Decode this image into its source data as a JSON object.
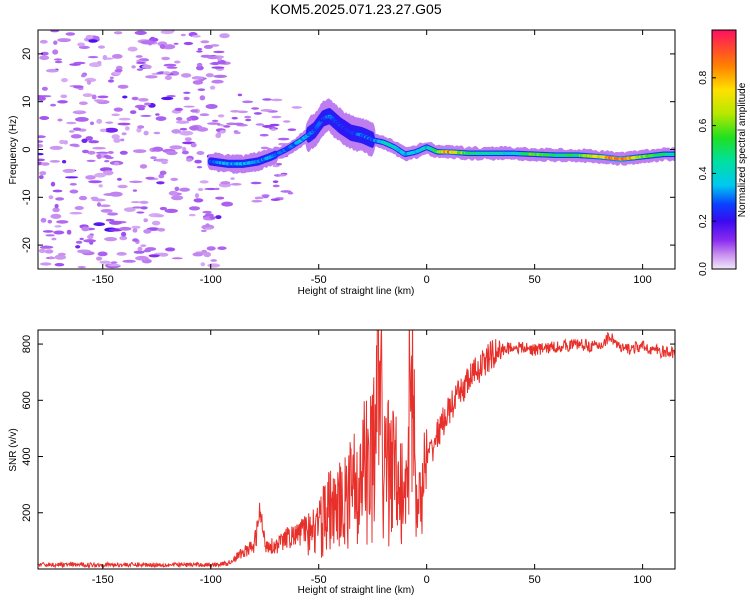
{
  "title": "KOM5.2025.071.23.27.G05",
  "chart_data": [
    {
      "type": "heatmap",
      "xlabel": "Height of straight line (km)",
      "ylabel": "Frequency (Hz)",
      "xlim": [
        -180,
        115
      ],
      "ylim": [
        -25,
        25
      ],
      "xticks": [
        -150,
        -100,
        -50,
        0,
        50,
        100
      ],
      "yticks": [
        -20,
        -10,
        0,
        10,
        20
      ],
      "colorbar": {
        "label": "Normalized spectral amplitude",
        "range": [
          0,
          1
        ],
        "ticks": [
          0.0,
          0.2,
          0.4,
          0.6,
          0.8
        ],
        "tick_labels": [
          "0.0",
          "0.2",
          "0.4",
          "0.6",
          "0.8"
        ]
      },
      "ridge": {
        "x": [
          -100,
          -92,
          -85,
          -78,
          -72,
          -65,
          -58,
          -52,
          -48,
          -45,
          -40,
          -35,
          -30,
          -25,
          -20,
          -15,
          -10,
          -5,
          0,
          5,
          10,
          20,
          30,
          40,
          50,
          60,
          70,
          80,
          90,
          100,
          110,
          115
        ],
        "freq": [
          -2.5,
          -3.0,
          -3.0,
          -2.5,
          -1.5,
          0.0,
          2.0,
          4.0,
          6.5,
          7.0,
          5.0,
          3.5,
          3.0,
          2.0,
          1.5,
          0.5,
          -1.0,
          -0.5,
          0.5,
          -0.5,
          -0.5,
          -0.8,
          -0.8,
          -0.8,
          -1.0,
          -1.2,
          -1.2,
          -1.5,
          -2.0,
          -1.5,
          -1.0,
          -1.0
        ],
        "amplitude": [
          0.3,
          0.35,
          0.35,
          0.3,
          0.35,
          0.3,
          0.35,
          0.3,
          0.25,
          0.3,
          0.25,
          0.25,
          0.3,
          0.3,
          0.4,
          0.45,
          0.35,
          0.4,
          0.4,
          0.55,
          0.9,
          0.5,
          0.45,
          0.4,
          0.6,
          0.5,
          0.55,
          0.75,
          0.95,
          0.6,
          0.5,
          0.45
        ]
      }
    },
    {
      "type": "line",
      "xlabel": "Height of straight line (km)",
      "ylabel": "SNR (v/v)",
      "xlim": [
        -180,
        115
      ],
      "ylim": [
        0,
        850
      ],
      "xticks": [
        -150,
        -100,
        -50,
        0,
        50,
        100
      ],
      "yticks": [
        200,
        400,
        600,
        800
      ],
      "color": "#e8302b",
      "series": [
        {
          "name": "SNR",
          "x": [
            -180,
            -150,
            -120,
            -100,
            -92,
            -85,
            -80,
            -77,
            -75,
            -70,
            -65,
            -60,
            -55,
            -50,
            -45,
            -40,
            -35,
            -30,
            -25,
            -22,
            -20,
            -15,
            -10,
            -7,
            -5,
            -3,
            0,
            5,
            10,
            15,
            20,
            25,
            30,
            35,
            40,
            50,
            60,
            70,
            80,
            85,
            90,
            100,
            110,
            115
          ],
          "y": [
            15,
            15,
            15,
            15,
            20,
            60,
            80,
            200,
            90,
            80,
            110,
            120,
            150,
            170,
            240,
            260,
            300,
            380,
            420,
            850,
            400,
            380,
            300,
            850,
            250,
            230,
            380,
            480,
            560,
            620,
            680,
            720,
            760,
            780,
            790,
            780,
            790,
            800,
            790,
            830,
            780,
            790,
            770,
            770
          ]
        }
      ]
    }
  ]
}
